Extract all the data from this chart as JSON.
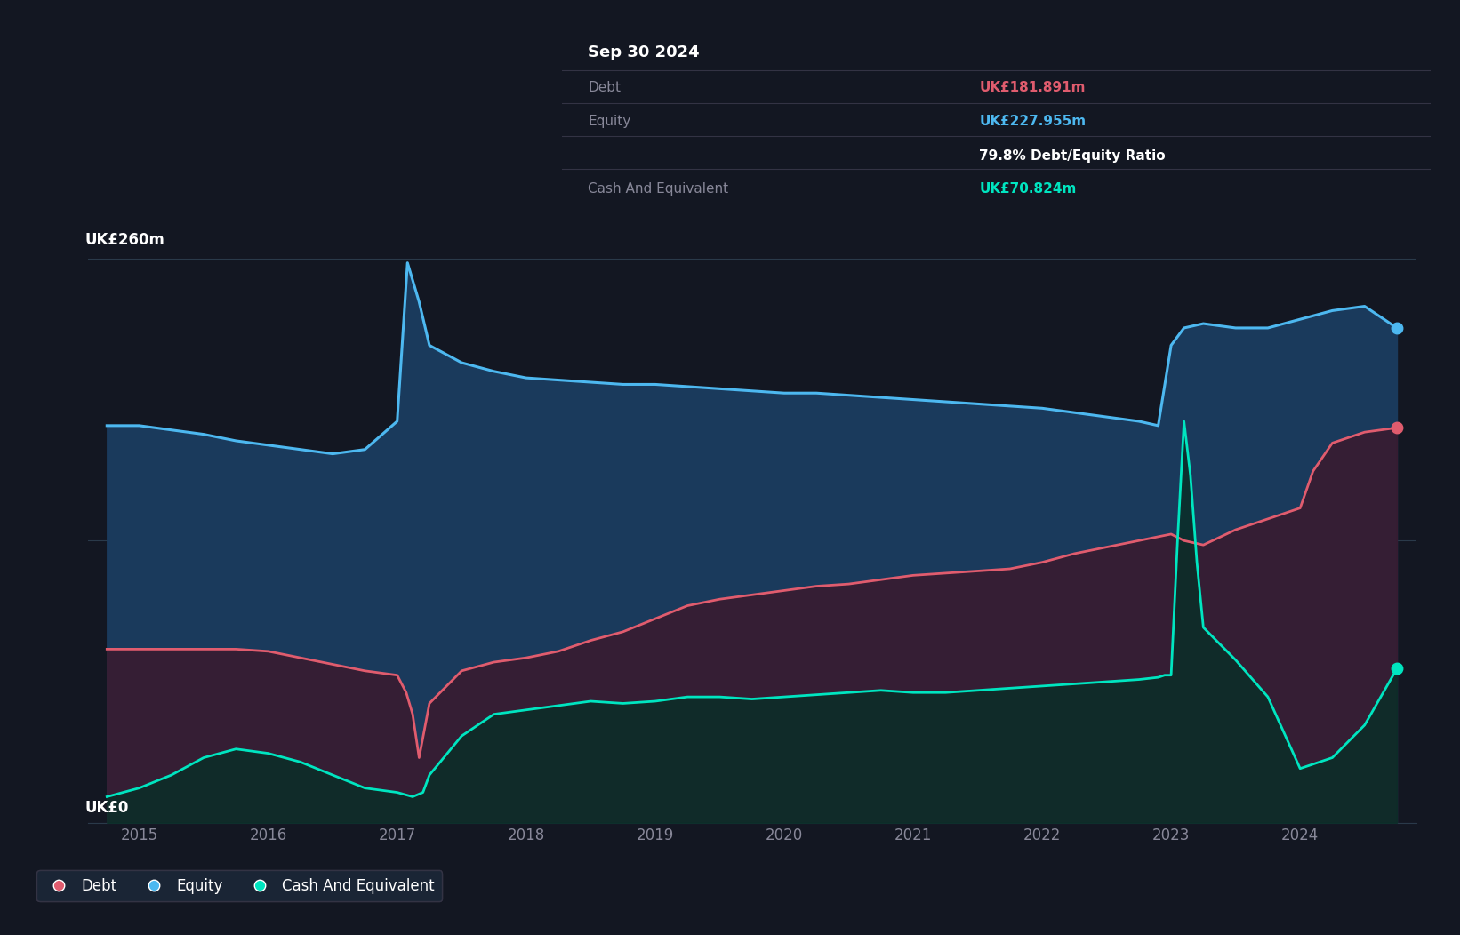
{
  "bg_color": "#131722",
  "plot_bg_color": "#131722",
  "grid_color": "#2a3a4a",
  "title_box": {
    "date": "Sep 30 2024",
    "debt_label": "Debt",
    "debt_value": "UK£181.891m",
    "equity_label": "Equity",
    "equity_value": "UK£227.955m",
    "ratio": "79.8% Debt/Equity Ratio",
    "cash_label": "Cash And Equivalent",
    "cash_value": "UK£70.824m"
  },
  "ylabel_top": "UK£260m",
  "ylabel_bottom": "UK£0",
  "legend": [
    {
      "label": "Debt",
      "color": "#e05c6e"
    },
    {
      "label": "Equity",
      "color": "#4db8f0"
    },
    {
      "label": "Cash And Equivalent",
      "color": "#00e5c0"
    }
  ],
  "equity_color": "#4db8f0",
  "equity_fill": "#1a3a5c",
  "debt_color": "#e05c6e",
  "debt_fill": "#3a1a2e",
  "cash_color": "#00e5c0",
  "cash_fill": "#0a2e28",
  "ylim": [
    0,
    280
  ],
  "equity_data": {
    "x": [
      2014.75,
      2015.0,
      2015.25,
      2015.5,
      2015.75,
      2016.0,
      2016.25,
      2016.5,
      2016.75,
      2017.0,
      2017.08,
      2017.12,
      2017.17,
      2017.25,
      2017.5,
      2017.75,
      2018.0,
      2018.25,
      2018.5,
      2018.75,
      2019.0,
      2019.25,
      2019.5,
      2019.75,
      2020.0,
      2020.25,
      2020.5,
      2020.75,
      2021.0,
      2021.25,
      2021.5,
      2021.75,
      2022.0,
      2022.25,
      2022.5,
      2022.75,
      2022.9,
      2023.0,
      2023.1,
      2023.25,
      2023.5,
      2023.75,
      2024.0,
      2024.25,
      2024.5,
      2024.75
    ],
    "y": [
      183,
      183,
      181,
      179,
      176,
      174,
      172,
      170,
      172,
      185,
      258,
      250,
      240,
      220,
      212,
      208,
      205,
      204,
      203,
      202,
      202,
      201,
      200,
      199,
      198,
      198,
      197,
      196,
      195,
      194,
      193,
      192,
      191,
      189,
      187,
      185,
      183,
      220,
      228,
      230,
      228,
      228,
      232,
      236,
      238,
      228
    ]
  },
  "debt_data": {
    "x": [
      2014.75,
      2015.0,
      2015.25,
      2015.5,
      2015.75,
      2016.0,
      2016.25,
      2016.5,
      2016.75,
      2017.0,
      2017.07,
      2017.12,
      2017.17,
      2017.25,
      2017.5,
      2017.75,
      2018.0,
      2018.25,
      2018.5,
      2018.75,
      2019.0,
      2019.25,
      2019.5,
      2019.75,
      2020.0,
      2020.25,
      2020.5,
      2020.75,
      2021.0,
      2021.25,
      2021.5,
      2021.75,
      2022.0,
      2022.25,
      2022.5,
      2022.75,
      2023.0,
      2023.1,
      2023.25,
      2023.5,
      2023.75,
      2024.0,
      2024.1,
      2024.25,
      2024.5,
      2024.75
    ],
    "y": [
      80,
      80,
      80,
      80,
      80,
      79,
      76,
      73,
      70,
      68,
      60,
      50,
      30,
      55,
      70,
      74,
      76,
      79,
      84,
      88,
      94,
      100,
      103,
      105,
      107,
      109,
      110,
      112,
      114,
      115,
      116,
      117,
      120,
      124,
      127,
      130,
      133,
      130,
      128,
      135,
      140,
      145,
      162,
      175,
      180,
      182
    ]
  },
  "cash_data": {
    "x": [
      2014.75,
      2015.0,
      2015.25,
      2015.5,
      2015.75,
      2016.0,
      2016.25,
      2016.5,
      2016.75,
      2017.0,
      2017.12,
      2017.2,
      2017.25,
      2017.5,
      2017.75,
      2018.0,
      2018.25,
      2018.5,
      2018.75,
      2019.0,
      2019.25,
      2019.5,
      2019.75,
      2020.0,
      2020.25,
      2020.5,
      2020.75,
      2021.0,
      2021.25,
      2021.5,
      2021.75,
      2022.0,
      2022.25,
      2022.5,
      2022.75,
      2022.9,
      2022.95,
      2023.0,
      2023.05,
      2023.1,
      2023.15,
      2023.2,
      2023.25,
      2023.5,
      2023.75,
      2024.0,
      2024.25,
      2024.5,
      2024.75
    ],
    "y": [
      12,
      16,
      22,
      30,
      34,
      32,
      28,
      22,
      16,
      14,
      12,
      14,
      22,
      40,
      50,
      52,
      54,
      56,
      55,
      56,
      58,
      58,
      57,
      58,
      59,
      60,
      61,
      60,
      60,
      61,
      62,
      63,
      64,
      65,
      66,
      67,
      68,
      68,
      130,
      185,
      160,
      120,
      90,
      75,
      58,
      25,
      30,
      45,
      71
    ]
  }
}
